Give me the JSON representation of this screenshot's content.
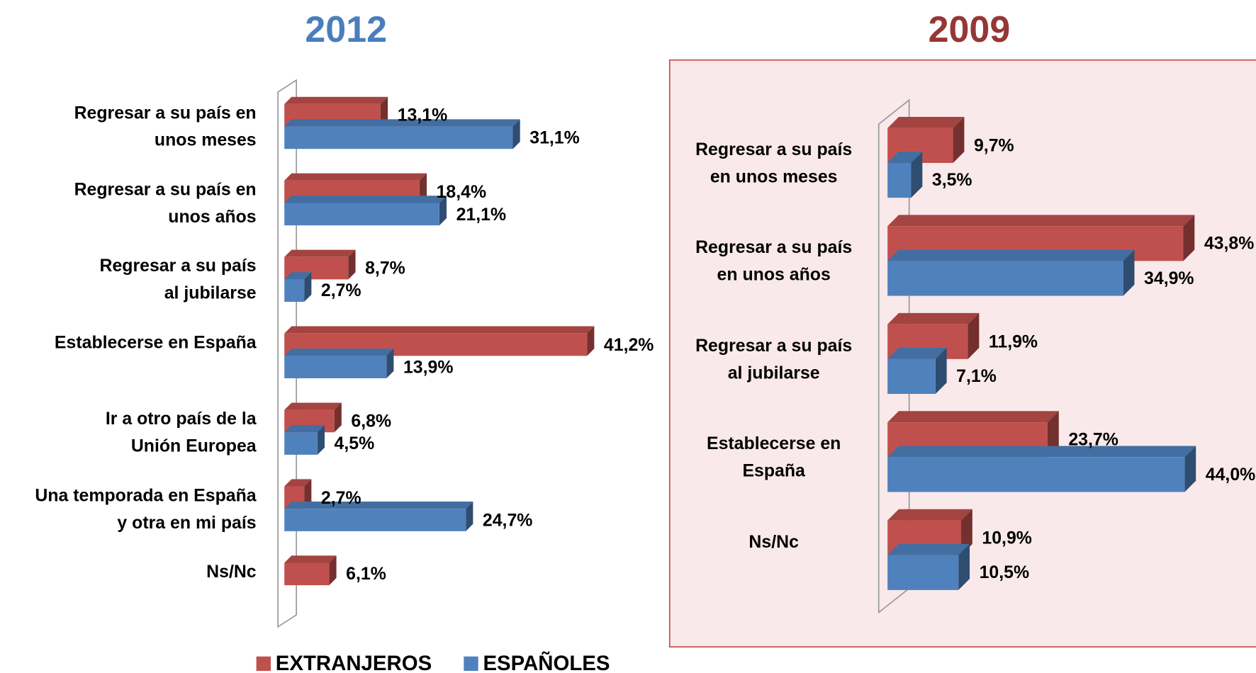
{
  "chart_data": [
    {
      "type": "bar",
      "title": "2012",
      "title_color": "#4a7ebb",
      "categories": [
        "Regresar a su país en\nunos meses",
        "Regresar a su país en\nunos años",
        "Regresar a su país\nal jubilarse",
        "Establecerse en España",
        "Ir a  otro país de la\nUnión Europea",
        "Una temporada en España\ny otra en mi país",
        "Ns/Nc"
      ],
      "series": [
        {
          "name": "EXTRANJEROS",
          "color": "#c0504d",
          "values": [
            13.1,
            18.4,
            8.7,
            41.2,
            6.8,
            2.7,
            6.1
          ],
          "value_labels": [
            "13,1%",
            "18,4%",
            "8,7%",
            "41,2%",
            "6,8%",
            "2,7%",
            "6,1%"
          ]
        },
        {
          "name": "ESPAÑOLES",
          "color": "#4f81bd",
          "values": [
            31.1,
            21.1,
            2.7,
            13.9,
            4.5,
            24.7,
            null
          ],
          "value_labels": [
            "31,1%",
            "21,1%",
            "2,7%",
            "13,9%",
            "4,5%",
            "24,7%",
            null
          ]
        }
      ],
      "xlim": [
        0,
        45
      ],
      "legend": "bottom"
    },
    {
      "type": "bar",
      "title": "2009",
      "title_color": "#953735",
      "categories": [
        "Regresar a su país\nen unos meses",
        "Regresar a su país\nen unos años",
        "Regresar a su país\nal jubilarse",
        "Establecerse en\nEspaña",
        "Ns/Nc"
      ],
      "series": [
        {
          "color": "#c0504d",
          "values": [
            9.7,
            43.8,
            11.9,
            23.7,
            10.9
          ],
          "value_labels": [
            "9,7%",
            "43,8%",
            "11,9%",
            "23,7%",
            "10,9%"
          ]
        },
        {
          "color": "#4f81bd",
          "values": [
            3.5,
            34.9,
            7.1,
            44.0,
            10.5
          ],
          "value_labels": [
            "3,5%",
            "34,9%",
            "7,1%",
            "44,0%",
            "10,5%"
          ]
        }
      ],
      "xlim": [
        0,
        45
      ]
    }
  ]
}
